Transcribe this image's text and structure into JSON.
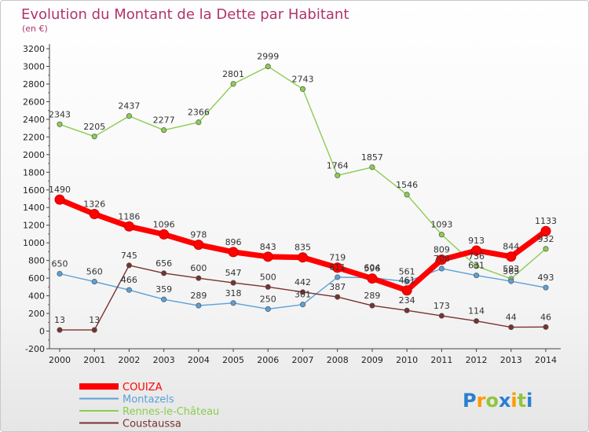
{
  "chart_data": {
    "type": "line",
    "title": "Evolution du Montant de la Dette par Habitant",
    "subtitle": "(en €)",
    "x": [
      "2000",
      "2001",
      "2002",
      "2003",
      "2004",
      "2005",
      "2006",
      "2007",
      "2008",
      "2009",
      "2010",
      "2011",
      "2012",
      "2013",
      "2014"
    ],
    "ylim": [
      -200,
      3200
    ],
    "yticks": [
      -200,
      0,
      200,
      400,
      600,
      800,
      1000,
      1200,
      1400,
      1600,
      1800,
      2000,
      2200,
      2400,
      2600,
      2800,
      3000,
      3200
    ],
    "grid": false,
    "legend_position": "bottom-left",
    "series": [
      {
        "name": "COUIZA",
        "color": "#ff0000",
        "values": [
          1490,
          1326,
          1186,
          1096,
          978,
          896,
          843,
          835,
          719,
          596,
          461,
          809,
          913,
          844,
          1133
        ],
        "labels": [
          "1490",
          "1326",
          "1186",
          "1096",
          "978",
          "896",
          "843",
          "835",
          "719",
          "596",
          "461",
          "809",
          "913",
          "844",
          "1133"
        ]
      },
      {
        "name": "Montazels",
        "color": "#5aa0d8",
        "values": [
          650,
          560,
          466,
          359,
          289,
          318,
          250,
          301,
          611,
          604,
          561,
          708,
          631,
          565,
          493
        ],
        "labels": [
          "650",
          "560",
          "466",
          "359",
          "289",
          "318",
          "250",
          "301",
          "611",
          "604",
          "561",
          "708",
          "631",
          "565",
          "493"
        ]
      },
      {
        "name": "Rennes-le-Château",
        "color": "#8ccc50",
        "values": [
          2343,
          2205,
          2437,
          2277,
          2366,
          2801,
          2999,
          2743,
          1764,
          1857,
          1546,
          1093,
          736,
          593,
          932
        ],
        "labels": [
          "2343",
          "2205",
          "2437",
          "2277",
          "2366",
          "2801",
          "2999",
          "2743",
          "1764",
          "1857",
          "1546",
          "1093",
          "736",
          "593",
          "932"
        ]
      },
      {
        "name": "Coustaussa",
        "color": "#7a3030",
        "values": [
          13,
          13,
          745,
          656,
          600,
          547,
          500,
          442,
          387,
          289,
          234,
          173,
          114,
          44,
          46
        ],
        "labels": [
          "13",
          "13",
          "745",
          "656",
          "600",
          "547",
          "500",
          "442",
          "387",
          "289",
          "234",
          "173",
          "114",
          "44",
          "46"
        ]
      }
    ]
  },
  "logo": {
    "text": "Proxiti"
  }
}
